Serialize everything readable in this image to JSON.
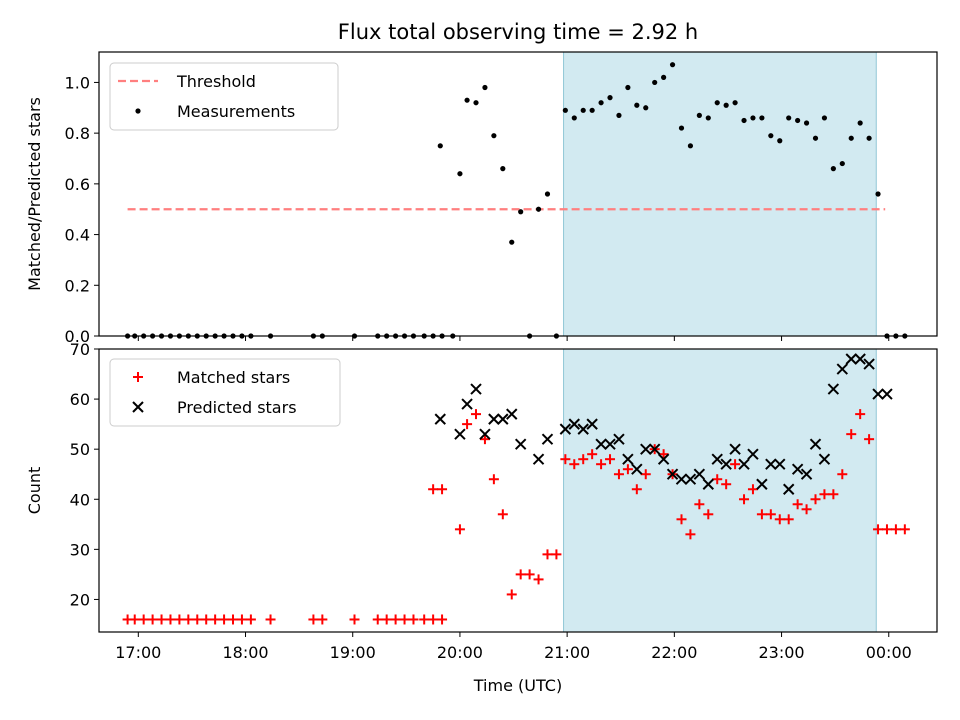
{
  "figure_title": "Flux total observing time = 2.92 h",
  "colors": {
    "threshold": "#ff7f7f",
    "measurement": "#000000",
    "matched": "#ff0000",
    "predicted": "#000000",
    "span_fill": "#add8e6",
    "span_edge": "#8fc6d6"
  },
  "chart_data": [
    {
      "type": "scatter",
      "panel": "top",
      "ylabel": "Matched/Predicted stars",
      "xlabel": "",
      "ylim": [
        0,
        1.12
      ],
      "yticks": [
        0.0,
        0.2,
        0.4,
        0.6,
        0.8,
        1.0
      ],
      "ytick_labels": [
        "0.0",
        "0.2",
        "0.4",
        "0.6",
        "0.8",
        "1.0"
      ],
      "xlim": [
        "16:38",
        "00:27"
      ],
      "xticks": [
        "17:00",
        "18:00",
        "19:00",
        "20:00",
        "21:00",
        "22:00",
        "23:00",
        "00:00"
      ],
      "shaded_span": [
        "20:58",
        "23:53"
      ],
      "legend_position": "top-left",
      "series": [
        {
          "name": "Threshold",
          "kind": "line",
          "style": "dashed",
          "x": [
            "16:54",
            "23:58"
          ],
          "y": [
            0.5,
            0.5
          ]
        },
        {
          "name": "Measurements",
          "kind": "scatter",
          "marker": "dot",
          "x": [
            "16:54",
            "16:58",
            "17:03",
            "17:08",
            "17:13",
            "17:18",
            "17:23",
            "17:28",
            "17:33",
            "17:38",
            "17:43",
            "17:48",
            "17:53",
            "17:58",
            "18:03",
            "18:14",
            "18:38",
            "18:43",
            "19:01",
            "19:14",
            "19:19",
            "19:24",
            "19:29",
            "19:34",
            "19:40",
            "19:45",
            "19:50",
            "19:56",
            "19:49",
            "20:00",
            "20:04",
            "20:09",
            "20:14",
            "20:19",
            "20:24",
            "20:29",
            "20:34",
            "20:39",
            "20:44",
            "20:49",
            "20:54",
            "20:59",
            "21:04",
            "21:09",
            "21:14",
            "21:19",
            "21:24",
            "21:29",
            "21:34",
            "21:39",
            "21:44",
            "21:49",
            "21:54",
            "21:59",
            "22:04",
            "22:09",
            "22:14",
            "22:19",
            "22:24",
            "22:29",
            "22:34",
            "22:39",
            "22:44",
            "22:49",
            "22:54",
            "22:59",
            "23:04",
            "23:09",
            "23:14",
            "23:19",
            "23:24",
            "23:29",
            "23:34",
            "23:39",
            "23:44",
            "23:49",
            "23:54",
            "23:59",
            "00:04",
            "00:09"
          ],
          "y": [
            0,
            0,
            0,
            0,
            0,
            0,
            0,
            0,
            0,
            0,
            0,
            0,
            0,
            0,
            0,
            0,
            0,
            0,
            0,
            0,
            0,
            0,
            0,
            0,
            0,
            0,
            0,
            0,
            0.75,
            0.64,
            0.93,
            0.92,
            0.98,
            0.79,
            0.66,
            0.37,
            0.49,
            0,
            0.5,
            0.56,
            0,
            0.89,
            0.86,
            0.89,
            0.89,
            0.92,
            0.94,
            0.87,
            0.98,
            0.91,
            0.9,
            1.0,
            1.02,
            1.07,
            0.82,
            0.75,
            0.87,
            0.86,
            0.92,
            0.91,
            0.92,
            0.85,
            0.86,
            0.86,
            0.79,
            0.77,
            0.86,
            0.85,
            0.84,
            0.78,
            0.86,
            0.66,
            0.68,
            0.78,
            0.84,
            0.78,
            0.56,
            0,
            0,
            0
          ]
        }
      ]
    },
    {
      "type": "scatter",
      "panel": "bottom",
      "ylabel": "Count",
      "xlabel": "Time (UTC)",
      "ylim": [
        13.5,
        70
      ],
      "yticks": [
        20,
        30,
        40,
        50,
        60,
        70
      ],
      "ytick_labels": [
        "20",
        "30",
        "40",
        "50",
        "60",
        "70"
      ],
      "xlim": [
        "16:38",
        "00:27"
      ],
      "xticks": [
        "17:00",
        "18:00",
        "19:00",
        "20:00",
        "21:00",
        "22:00",
        "23:00",
        "00:00"
      ],
      "xtick_labels": [
        "17:00",
        "18:00",
        "19:00",
        "20:00",
        "21:00",
        "22:00",
        "23:00",
        "00:00"
      ],
      "shaded_span": [
        "20:58",
        "23:53"
      ],
      "legend_position": "top-left",
      "series": [
        {
          "name": "Matched stars",
          "kind": "scatter",
          "marker": "plus",
          "x": [
            "16:54",
            "16:58",
            "17:03",
            "17:08",
            "17:13",
            "17:18",
            "17:23",
            "17:28",
            "17:33",
            "17:38",
            "17:43",
            "17:48",
            "17:53",
            "17:58",
            "18:03",
            "18:14",
            "18:38",
            "18:43",
            "19:01",
            "19:14",
            "19:19",
            "19:24",
            "19:29",
            "19:34",
            "19:40",
            "19:45",
            "19:50",
            "19:45",
            "19:50",
            "20:00",
            "20:04",
            "20:09",
            "20:14",
            "20:19",
            "20:24",
            "20:29",
            "20:34",
            "20:39",
            "20:44",
            "20:49",
            "20:54",
            "20:59",
            "21:04",
            "21:09",
            "21:14",
            "21:19",
            "21:24",
            "21:29",
            "21:34",
            "21:39",
            "21:44",
            "21:49",
            "21:54",
            "21:59",
            "22:04",
            "22:09",
            "22:14",
            "22:19",
            "22:24",
            "22:29",
            "22:34",
            "22:39",
            "22:44",
            "22:49",
            "22:54",
            "22:59",
            "23:04",
            "23:09",
            "23:14",
            "23:19",
            "23:24",
            "23:29",
            "23:34",
            "23:39",
            "23:44",
            "23:49",
            "23:54",
            "23:59",
            "00:04",
            "00:09"
          ],
          "y": [
            16,
            16,
            16,
            16,
            16,
            16,
            16,
            16,
            16,
            16,
            16,
            16,
            16,
            16,
            16,
            16,
            16,
            16,
            16,
            16,
            16,
            16,
            16,
            16,
            16,
            16,
            16,
            42,
            42,
            34,
            55,
            57,
            52,
            44,
            37,
            21,
            25,
            25,
            24,
            29,
            29,
            48,
            47,
            48,
            49,
            47,
            48,
            45,
            46,
            42,
            45,
            50,
            49,
            45,
            36,
            33,
            39,
            37,
            44,
            43,
            47,
            40,
            42,
            37,
            37,
            36,
            36,
            39,
            38,
            40,
            41,
            41,
            45,
            53,
            57,
            52,
            34,
            34,
            34,
            34
          ],
          "note": ""
        },
        {
          "name": "Predicted stars",
          "kind": "scatter",
          "marker": "x",
          "x": [
            "19:49",
            "20:00",
            "20:04",
            "20:09",
            "20:14",
            "20:19",
            "20:24",
            "20:29",
            "20:34",
            "20:44",
            "20:49",
            "20:59",
            "21:04",
            "21:09",
            "21:14",
            "21:19",
            "21:24",
            "21:29",
            "21:34",
            "21:39",
            "21:44",
            "21:49",
            "21:54",
            "21:59",
            "22:04",
            "22:09",
            "22:14",
            "22:19",
            "22:24",
            "22:29",
            "22:34",
            "22:39",
            "22:44",
            "22:49",
            "22:54",
            "22:59",
            "23:04",
            "23:09",
            "23:14",
            "23:19",
            "23:24",
            "23:29",
            "23:34",
            "23:39",
            "23:44",
            "23:49",
            "23:54",
            "23:59"
          ],
          "y": [
            56,
            53,
            59,
            62,
            53,
            56,
            56,
            57,
            51,
            48,
            52,
            54,
            55,
            54,
            55,
            51,
            51,
            52,
            48,
            46,
            50,
            50,
            48,
            45,
            44,
            44,
            45,
            43,
            48,
            47,
            50,
            47,
            49,
            43,
            47,
            47,
            42,
            46,
            45,
            51,
            48,
            62,
            66,
            68,
            68,
            67,
            61,
            61
          ]
        }
      ]
    }
  ]
}
